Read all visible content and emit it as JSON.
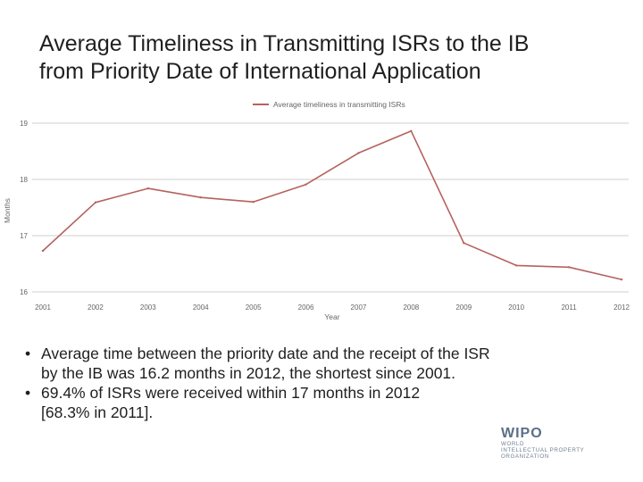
{
  "slide": {
    "title_line1": "Average Timeliness in Transmitting ISRs to the IB",
    "title_line2": "from Priority Date of International Application"
  },
  "chart_data": {
    "type": "line",
    "legend": "Average timeliness in transmitting ISRs",
    "legend_position": "top-center",
    "xlabel": "Year",
    "ylabel": "Months",
    "ylim": [
      16,
      19
    ],
    "yticks": [
      "16",
      "17",
      "18",
      "19"
    ],
    "grid": true,
    "line_color": "#b5625e",
    "categories": [
      "2001",
      "2002",
      "2003",
      "2004",
      "2005",
      "2006",
      "2007",
      "2008",
      "2009",
      "2010",
      "2011",
      "2012"
    ],
    "series": [
      {
        "name": "Average timeliness in transmitting ISRs",
        "values": [
          16.73,
          17.59,
          17.84,
          17.68,
          17.6,
          17.91,
          18.47,
          18.86,
          16.87,
          16.47,
          16.44,
          16.22
        ]
      }
    ]
  },
  "bullets": [
    {
      "marker": "•",
      "lines": [
        "Average time between the priority date and the receipt of the ISR",
        "by the IB was 16.2 months in 2012, the shortest since 2001."
      ]
    },
    {
      "marker": "•",
      "lines": [
        "69.4% of ISRs were received within 17 months in 2012",
        "[68.3% in 2011]."
      ]
    }
  ],
  "logo": {
    "name": "WIPO",
    "line1": "WORLD",
    "line2": "INTELLECTUAL PROPERTY",
    "line3": "ORGANIZATION"
  }
}
